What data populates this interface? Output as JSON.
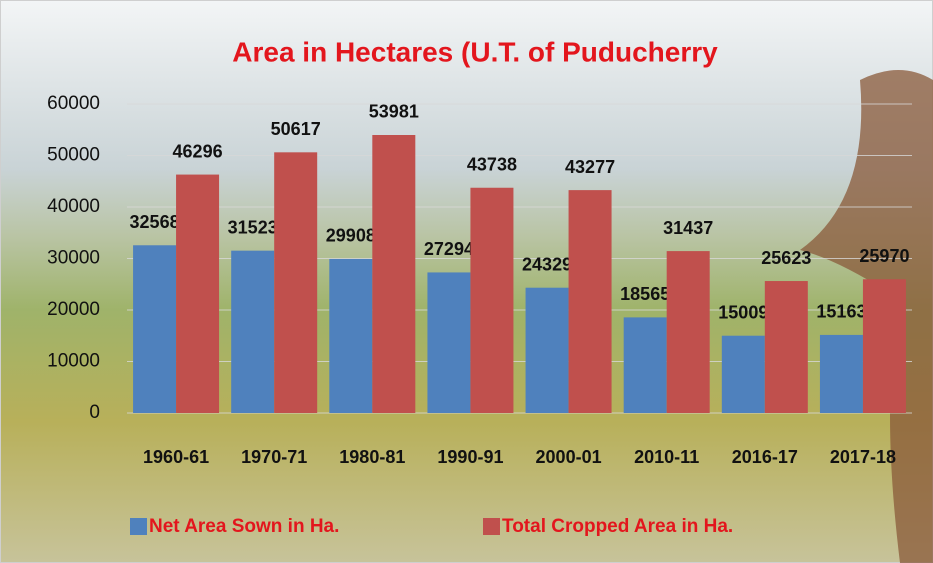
{
  "chart_data": {
    "type": "bar",
    "title": "Area in Hectares (U.T. of Puducherry",
    "categories": [
      "1960-61",
      "1970-71",
      "1980-81",
      "1990-91",
      "2000-01",
      "2010-11",
      "2016-17",
      "2017-18"
    ],
    "series": [
      {
        "name": "Net Area Sown in Ha.",
        "color": "#4f81bd",
        "values": [
          32568,
          31523,
          29908,
          27294,
          24329,
          18565,
          15009,
          15163
        ]
      },
      {
        "name": "Total Cropped Area in Ha.",
        "color": "#c0504d",
        "values": [
          46296,
          50617,
          53981,
          43738,
          43277,
          31437,
          25623,
          25970
        ]
      }
    ],
    "ylim": [
      0,
      60000
    ],
    "yticks": [
      0,
      10000,
      20000,
      30000,
      40000,
      50000,
      60000
    ],
    "grid": true,
    "legend": "bottom",
    "title_color": "#e3161d",
    "legend_text_color": "#e3161d"
  }
}
